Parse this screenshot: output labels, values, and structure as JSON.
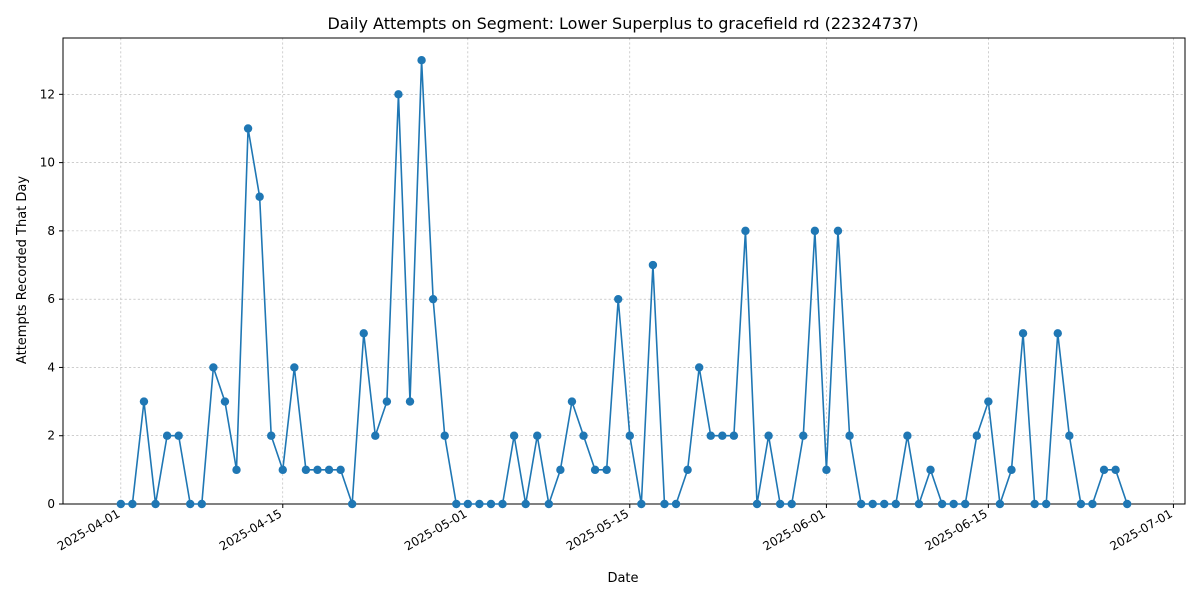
{
  "chart_data": {
    "type": "line",
    "title": "Daily Attempts on Segment: Lower Superplus to gracefield rd (22324737)",
    "xlabel": "Date",
    "ylabel": "Attempts Recorded That Day",
    "x_start": "2025-04-01",
    "xlim": [
      "2025-03-27",
      "2025-07-02"
    ],
    "ylim": [
      0,
      13.65
    ],
    "x_ticks": [
      "2025-04-01",
      "2025-04-15",
      "2025-05-01",
      "2025-05-15",
      "2025-06-01",
      "2025-06-15",
      "2025-07-01"
    ],
    "y_ticks": [
      0,
      2,
      4,
      6,
      8,
      10,
      12
    ],
    "grid": true,
    "color": "#1f77b4",
    "marker": "circle",
    "series": [
      {
        "values": [
          0,
          0,
          3,
          0,
          2,
          2,
          0,
          0,
          4,
          3,
          1,
          11,
          9,
          2,
          1,
          4,
          1,
          1,
          1,
          1,
          0,
          5,
          2,
          3,
          12,
          3,
          13,
          6,
          2,
          0,
          0,
          0,
          0,
          0,
          2,
          0,
          2,
          0,
          1,
          3,
          2,
          1,
          1,
          6,
          2,
          0,
          7,
          0,
          0,
          1,
          4,
          2,
          2,
          2,
          8,
          0,
          2,
          0,
          0,
          2,
          8,
          1,
          8,
          2,
          0,
          0,
          0,
          0,
          2,
          0,
          1,
          0,
          0,
          0,
          2,
          3,
          0,
          1,
          5,
          0,
          0,
          5,
          2,
          0,
          0,
          1,
          1,
          0
        ]
      }
    ]
  }
}
